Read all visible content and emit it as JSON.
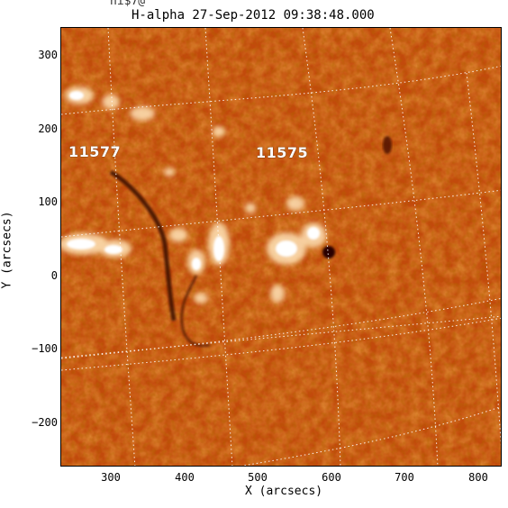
{
  "header": {
    "logo_text": "ħī$7@",
    "title": "H-alpha 27-Sep-2012 09:38:48.000"
  },
  "axes": {
    "xlabel": "X (arcsecs)",
    "ylabel": "Y (arcsecs)",
    "xticks": [
      "300",
      "400",
      "500",
      "600",
      "700",
      "800"
    ],
    "yticks": [
      "300",
      "200",
      "100",
      "0",
      "−100",
      "−200"
    ],
    "xlim": [
      232,
      832
    ],
    "ylim": [
      -260,
      340
    ]
  },
  "regions": {
    "ar1": "11577",
    "ar2": "11575"
  },
  "colors": {
    "background": "#b93f08",
    "dark": "#5a1200",
    "bright": "#ffffff",
    "grid": "#ffffff"
  }
}
